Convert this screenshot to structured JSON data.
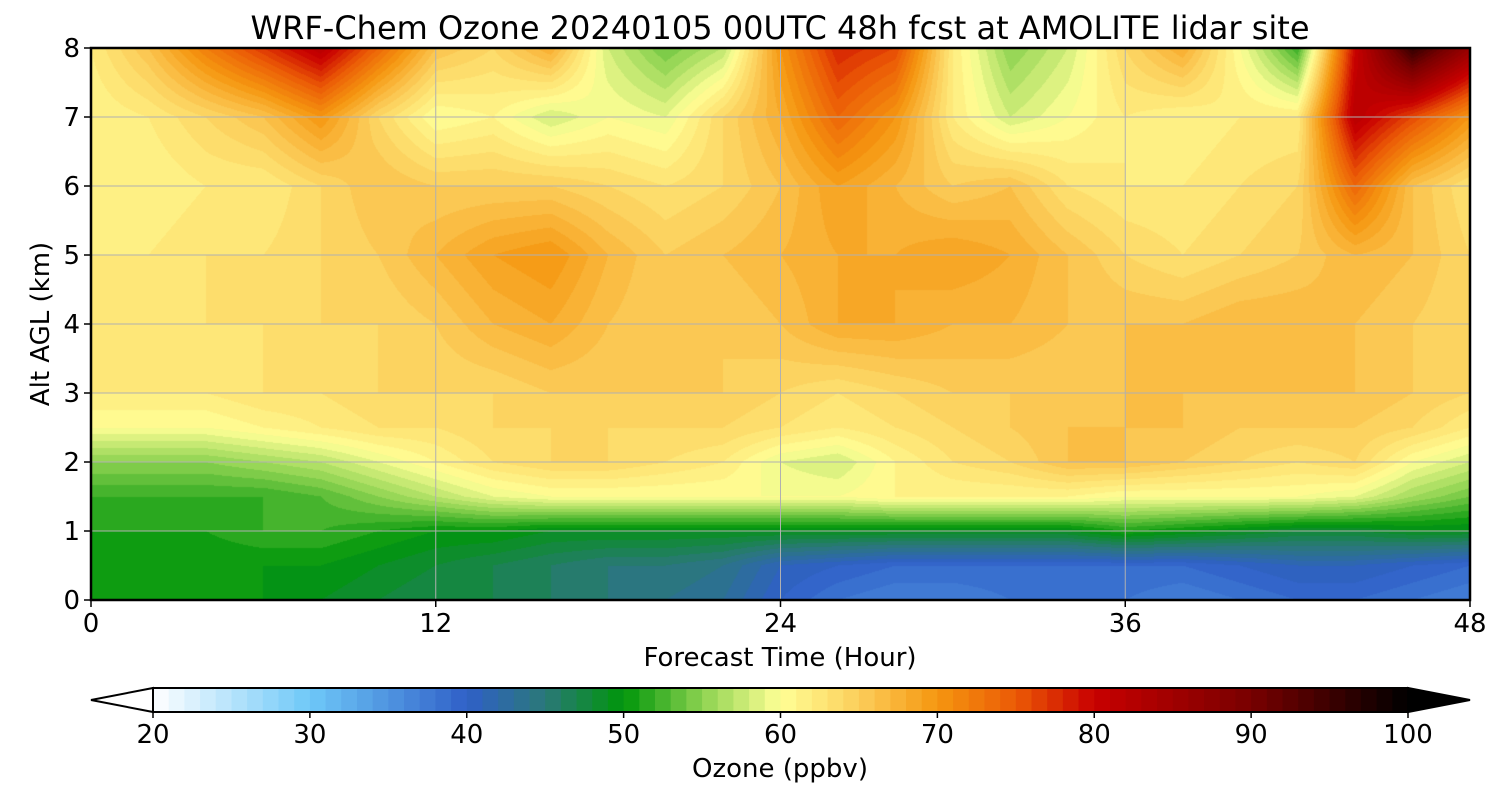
{
  "chart_data": {
    "type": "heatmap",
    "title": "WRF-Chem Ozone  20240105 00UTC 48h fcst at AMOLITE lidar site",
    "xlabel": "Forecast Time (Hour)",
    "ylabel": "Alt AGL (km)",
    "x_ticks": [
      0,
      12,
      24,
      36,
      48
    ],
    "y_ticks": [
      0,
      1,
      2,
      3,
      4,
      5,
      6,
      7,
      8
    ],
    "xlim": [
      0,
      48
    ],
    "ylim": [
      0,
      8
    ],
    "grid": true,
    "colorbar": {
      "label": "Ozone  (ppbv)",
      "orientation": "horizontal",
      "range": [
        20,
        100
      ],
      "ticks": [
        20,
        30,
        40,
        50,
        60,
        70,
        80,
        90,
        100
      ],
      "extend": "both",
      "stops": [
        {
          "value": 20,
          "color": "#ffffff"
        },
        {
          "value": 30,
          "color": "#6ec8f8"
        },
        {
          "value": 40,
          "color": "#3060c8"
        },
        {
          "value": 45,
          "color": "#2a7878"
        },
        {
          "value": 50,
          "color": "#00960a"
        },
        {
          "value": 55,
          "color": "#8cd250"
        },
        {
          "value": 60,
          "color": "#ffff96"
        },
        {
          "value": 65,
          "color": "#fcce5a"
        },
        {
          "value": 70,
          "color": "#f59610"
        },
        {
          "value": 75,
          "color": "#eb5a06"
        },
        {
          "value": 80,
          "color": "#c80000"
        },
        {
          "value": 90,
          "color": "#780000"
        },
        {
          "value": 100,
          "color": "#000000"
        }
      ]
    },
    "field_hours": [
      0,
      2,
      4,
      6,
      8,
      10,
      12,
      14,
      16,
      18,
      20,
      22,
      24,
      26,
      28,
      30,
      32,
      34,
      36,
      38,
      40,
      42,
      44,
      46,
      48
    ],
    "field_altitudes_km": [
      0,
      0.5,
      1,
      1.5,
      2,
      2.5,
      3,
      4,
      5,
      6,
      7,
      8
    ],
    "ozone_ppbv_rows": [
      [
        50,
        50,
        50,
        50,
        49,
        48,
        47,
        47,
        46,
        45,
        44,
        43,
        40,
        38,
        37,
        37,
        38,
        38,
        38,
        37,
        38,
        39,
        39,
        38,
        37
      ],
      [
        50,
        50,
        50,
        50,
        50,
        49,
        48,
        47,
        46,
        45,
        45,
        44,
        41,
        40,
        39,
        39,
        39,
        39,
        39,
        39,
        40,
        41,
        41,
        40,
        39
      ],
      [
        51,
        51,
        51,
        52,
        52,
        51,
        50,
        50,
        49,
        49,
        49,
        49,
        49,
        49,
        49,
        49,
        49,
        49,
        51,
        50,
        49,
        48,
        48,
        49,
        49
      ],
      [
        52,
        52,
        52,
        52,
        53,
        55,
        57,
        59,
        60,
        60,
        60,
        60,
        60,
        60,
        61,
        61,
        61,
        61,
        60,
        60,
        60,
        60,
        59,
        56,
        54
      ],
      [
        55,
        55,
        55,
        56,
        57,
        59,
        61,
        63,
        64,
        64,
        63,
        62,
        59,
        58,
        61,
        63,
        64,
        66,
        66,
        65,
        64,
        63,
        64,
        60,
        58
      ],
      [
        60,
        60,
        60,
        61,
        62,
        63,
        63,
        64,
        64,
        64,
        64,
        64,
        63,
        62,
        63,
        64,
        65,
        66,
        66,
        66,
        65,
        65,
        65,
        64,
        62
      ],
      [
        62,
        62,
        62,
        63,
        63,
        64,
        64,
        64,
        65,
        65,
        65,
        65,
        64,
        63,
        64,
        65,
        65,
        65,
        66,
        66,
        66,
        66,
        66,
        65,
        64
      ],
      [
        62,
        62,
        63,
        63,
        64,
        64,
        65,
        67,
        68,
        66,
        65,
        65,
        66,
        68,
        68,
        67,
        67,
        66,
        66,
        66,
        67,
        67,
        66,
        65,
        64
      ],
      [
        62,
        62,
        63,
        63,
        64,
        65,
        67,
        69,
        70,
        67,
        65,
        66,
        67,
        68,
        68,
        69,
        68,
        66,
        64,
        63,
        64,
        65,
        67,
        66,
        64
      ],
      [
        61,
        61,
        62,
        62,
        64,
        66,
        65,
        65,
        65,
        64,
        63,
        64,
        66,
        69,
        67,
        65,
        66,
        63,
        62,
        62,
        63,
        64,
        74,
        66,
        63
      ],
      [
        61,
        62,
        64,
        66,
        70,
        64,
        60,
        61,
        58,
        60,
        59,
        64,
        68,
        74,
        70,
        62,
        58,
        60,
        62,
        61,
        62,
        62,
        82,
        76,
        70
      ],
      [
        62,
        66,
        72,
        77,
        82,
        74,
        66,
        64,
        68,
        58,
        54,
        57,
        70,
        78,
        76,
        62,
        55,
        58,
        64,
        68,
        60,
        52,
        80,
        96,
        86
      ]
    ]
  }
}
